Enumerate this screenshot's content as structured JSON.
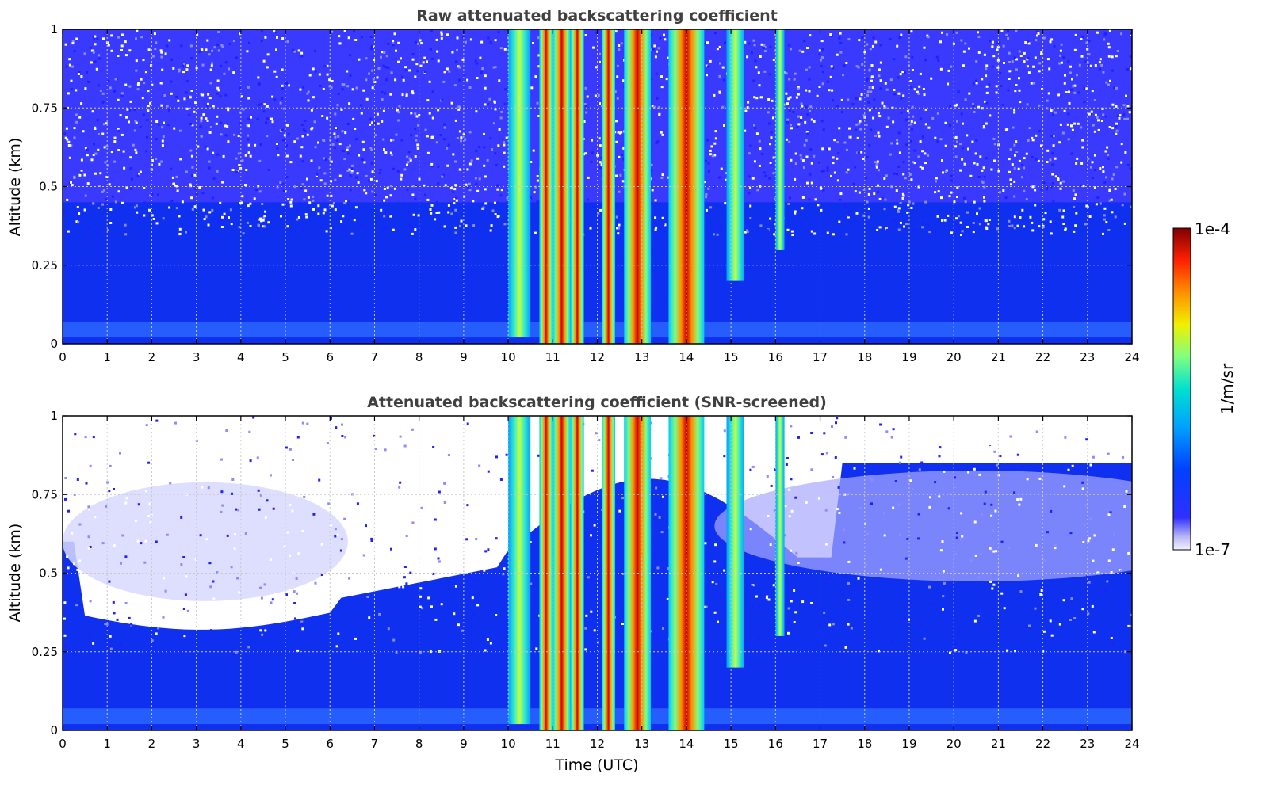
{
  "chart_data": [
    {
      "type": "heatmap",
      "title": "Raw attenuated backscattering coefficient",
      "xlabel": "",
      "ylabel": "Altitude (km)",
      "xlim": [
        0,
        24
      ],
      "ylim": [
        0,
        1
      ],
      "x_ticks": [
        "0",
        "1",
        "2",
        "3",
        "4",
        "5",
        "6",
        "7",
        "8",
        "9",
        "10",
        "11",
        "12",
        "13",
        "14",
        "15",
        "16",
        "17",
        "18",
        "19",
        "20",
        "21",
        "22",
        "23",
        "24"
      ],
      "y_ticks": [
        "0",
        "0.25",
        "0.5",
        "0.75",
        "1"
      ],
      "grid": true,
      "colormap": "jet",
      "screened": false,
      "layers": [
        {
          "x0": 10.0,
          "x1": 10.5,
          "bottom": 0.02,
          "peak": 0.45
        },
        {
          "x0": 10.7,
          "x1": 11.0,
          "bottom": 0.0,
          "peak": 1.0
        },
        {
          "x0": 11.0,
          "x1": 11.4,
          "bottom": 0.0,
          "peak": 0.8
        },
        {
          "x0": 11.4,
          "x1": 11.7,
          "bottom": 0.0,
          "peak": 0.7
        },
        {
          "x0": 12.1,
          "x1": 12.4,
          "bottom": 0.0,
          "peak": 1.0
        },
        {
          "x0": 12.6,
          "x1": 13.2,
          "bottom": 0.0,
          "peak": 0.95
        },
        {
          "x0": 13.6,
          "x1": 14.4,
          "bottom": 0.0,
          "peak": 1.0
        },
        {
          "x0": 14.9,
          "x1": 15.3,
          "bottom": 0.2,
          "peak": 0.6
        },
        {
          "x0": 16.0,
          "x1": 16.2,
          "bottom": 0.3,
          "peak": 0.4
        }
      ]
    },
    {
      "type": "heatmap",
      "title": "Attenuated backscattering coefficient (SNR-screened)",
      "xlabel": "Time (UTC)",
      "ylabel": "Altitude (km)",
      "xlim": [
        0,
        24
      ],
      "ylim": [
        0,
        1
      ],
      "x_ticks": [
        "0",
        "1",
        "2",
        "3",
        "4",
        "5",
        "6",
        "7",
        "8",
        "9",
        "10",
        "11",
        "12",
        "13",
        "14",
        "15",
        "16",
        "17",
        "18",
        "19",
        "20",
        "21",
        "22",
        "23",
        "24"
      ],
      "y_ticks": [
        "0",
        "0.25",
        "0.5",
        "0.75",
        "1"
      ],
      "grid": true,
      "colormap": "jet",
      "screened": true,
      "layers": [
        {
          "x0": 10.0,
          "x1": 10.5,
          "bottom": 0.02,
          "peak": 0.45
        },
        {
          "x0": 10.7,
          "x1": 11.0,
          "bottom": 0.0,
          "peak": 1.0
        },
        {
          "x0": 11.0,
          "x1": 11.4,
          "bottom": 0.0,
          "peak": 0.8
        },
        {
          "x0": 11.4,
          "x1": 11.7,
          "bottom": 0.0,
          "peak": 0.7
        },
        {
          "x0": 12.1,
          "x1": 12.4,
          "bottom": 0.0,
          "peak": 1.0
        },
        {
          "x0": 12.6,
          "x1": 13.2,
          "bottom": 0.0,
          "peak": 0.95
        },
        {
          "x0": 13.6,
          "x1": 14.4,
          "bottom": 0.0,
          "peak": 1.0
        },
        {
          "x0": 14.9,
          "x1": 15.3,
          "bottom": 0.2,
          "peak": 0.6
        },
        {
          "x0": 16.0,
          "x1": 16.2,
          "bottom": 0.3,
          "peak": 0.4
        }
      ]
    }
  ],
  "colorbar": {
    "label": "1/m/sr",
    "max_label": "1e-4",
    "min_label": "1e-7",
    "min": 1e-07,
    "max": 0.0001,
    "scale": "log",
    "colormap": "jet"
  }
}
